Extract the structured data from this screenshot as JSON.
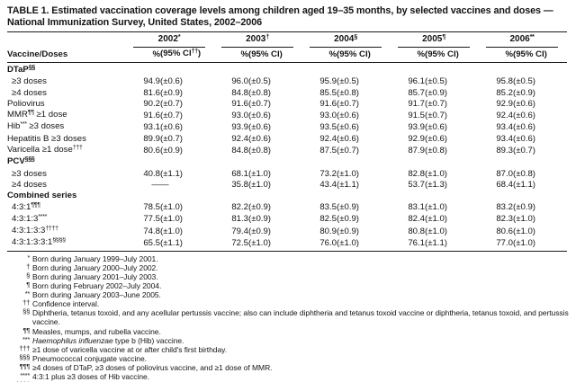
{
  "table": {
    "title": "TABLE 1. Estimated vaccination coverage levels among children aged 19–35 months, by selected vaccines and doses — National Immunization Survey, United States, 2002–2006",
    "row_header": "Vaccine/Doses",
    "years": [
      {
        "label": "2002",
        "marker": "*",
        "pct_label": "%",
        "ci_pre": "(95% CI",
        "ci_sup": "††",
        "ci_post": ")"
      },
      {
        "label": "2003",
        "marker": "†",
        "pct_label": "%",
        "ci_pre": "(95% CI)",
        "ci_sup": "",
        "ci_post": ""
      },
      {
        "label": "2004",
        "marker": "§",
        "pct_label": "%",
        "ci_pre": "(95% CI)",
        "ci_sup": "",
        "ci_post": ""
      },
      {
        "label": "2005",
        "marker": "¶",
        "pct_label": "%",
        "ci_pre": "(95% CI)",
        "ci_sup": "",
        "ci_post": ""
      },
      {
        "label": "2006",
        "marker": "**",
        "pct_label": "%",
        "ci_pre": "(95% CI)",
        "ci_sup": "",
        "ci_post": ""
      }
    ],
    "rows": [
      {
        "type": "section",
        "indent": false,
        "pre": "DTaP",
        "sup": "§§",
        "post": "",
        "values": null
      },
      {
        "type": "data",
        "indent": true,
        "pre": "≥3 doses",
        "sup": "",
        "post": "",
        "values": [
          "94.9",
          "(±0.6)",
          "96.0",
          "(±0.5)",
          "95.9",
          "(±0.5)",
          "96.1",
          "(±0.5)",
          "95.8",
          "(±0.5)"
        ]
      },
      {
        "type": "data",
        "indent": true,
        "pre": "≥4 doses",
        "sup": "",
        "post": "",
        "values": [
          "81.6",
          "(±0.9)",
          "84.8",
          "(±0.8)",
          "85.5",
          "(±0.8)",
          "85.7",
          "(±0.9)",
          "85.2",
          "(±0.9)"
        ]
      },
      {
        "type": "data",
        "indent": false,
        "pre": "Poliovirus",
        "sup": "",
        "post": "",
        "values": [
          "90.2",
          "(±0.7)",
          "91.6",
          "(±0.7)",
          "91.6",
          "(±0.7)",
          "91.7",
          "(±0.7)",
          "92.9",
          "(±0.6)"
        ]
      },
      {
        "type": "data",
        "indent": false,
        "pre": "MMR",
        "sup": "¶¶",
        "post": " ≥1 dose",
        "values": [
          "91.6",
          "(±0.7)",
          "93.0",
          "(±0.6)",
          "93.0",
          "(±0.6)",
          "91.5",
          "(±0.7)",
          "92.4",
          "(±0.6)"
        ]
      },
      {
        "type": "data",
        "indent": false,
        "pre": "Hib",
        "sup": "***",
        "post": " ≥3 doses",
        "values": [
          "93.1",
          "(±0.6)",
          "93.9",
          "(±0.6)",
          "93.5",
          "(±0.6)",
          "93.9",
          "(±0.6)",
          "93.4",
          "(±0.6)"
        ]
      },
      {
        "type": "data",
        "indent": false,
        "pre": "Hepatitis B ≥3 doses",
        "sup": "",
        "post": "",
        "values": [
          "89.9",
          "(±0.7)",
          "92.4",
          "(±0.6)",
          "92.4",
          "(±0.6)",
          "92.9",
          "(±0.6)",
          "93.4",
          "(±0.6)"
        ]
      },
      {
        "type": "data",
        "indent": false,
        "pre": "Varicella ≥1 dose",
        "sup": "†††",
        "post": "",
        "values": [
          "80.6",
          "(±0.9)",
          "84.8",
          "(±0.8)",
          "87.5",
          "(±0.7)",
          "87.9",
          "(±0.8)",
          "89.3",
          "(±0.7)"
        ]
      },
      {
        "type": "section",
        "indent": false,
        "pre": "PCV",
        "sup": "§§§",
        "post": "",
        "values": null
      },
      {
        "type": "data",
        "indent": true,
        "pre": "≥3 doses",
        "sup": "",
        "post": "",
        "values": [
          "40.8",
          "(±1.1)",
          "68.1",
          "(±1.0)",
          "73.2",
          "(±1.0)",
          "82.8",
          "(±1.0)",
          "87.0",
          "(±0.8)"
        ]
      },
      {
        "type": "data",
        "indent": true,
        "pre": "≥4 doses",
        "sup": "",
        "post": "",
        "values": [
          "—",
          "—",
          "35.8",
          "(±1.0)",
          "43.4",
          "(±1.1)",
          "53.7",
          "(±1.3)",
          "68.4",
          "(±1.1)"
        ]
      },
      {
        "type": "section",
        "indent": false,
        "pre": "Combined series",
        "sup": "",
        "post": "",
        "values": null
      },
      {
        "type": "data",
        "indent": true,
        "pre": "4:3:1",
        "sup": "¶¶¶",
        "post": "",
        "values": [
          "78.5",
          "(±1.0)",
          "82.2",
          "(±0.9)",
          "83.5",
          "(±0.9)",
          "83.1",
          "(±1.0)",
          "83.2",
          "(±0.9)"
        ]
      },
      {
        "type": "data",
        "indent": true,
        "pre": "4:3:1:3",
        "sup": "****",
        "post": "",
        "values": [
          "77.5",
          "(±1.0)",
          "81.3",
          "(±0.9)",
          "82.5",
          "(±0.9)",
          "82.4",
          "(±1.0)",
          "82.3",
          "(±1.0)"
        ]
      },
      {
        "type": "data",
        "indent": true,
        "pre": "4:3:1:3:3",
        "sup": "††††",
        "post": "",
        "values": [
          "74.8",
          "(±1.0)",
          "79.4",
          "(±0.9)",
          "80.9",
          "(±0.9)",
          "80.8",
          "(±1.0)",
          "80.6",
          "(±1.0)"
        ]
      },
      {
        "type": "data",
        "indent": true,
        "pre": "4:3:1:3:3:1",
        "sup": "§§§§",
        "post": "",
        "values": [
          "65.5",
          "(±1.1)",
          "72.5",
          "(±1.0)",
          "76.0",
          "(±1.0)",
          "76.1",
          "(±1.1)",
          "77.0",
          "(±1.0)"
        ]
      }
    ],
    "footnotes": [
      {
        "marker": "*",
        "italic": "",
        "text": "Born during January 1999–July 2001."
      },
      {
        "marker": "†",
        "italic": "",
        "text": "Born during January 2000–July 2002."
      },
      {
        "marker": "§",
        "italic": "",
        "text": "Born during January 2001–July 2003."
      },
      {
        "marker": "¶",
        "italic": "",
        "text": "Born during February 2002–July 2004."
      },
      {
        "marker": "**",
        "italic": "",
        "text": "Born during January 2003–June 2005."
      },
      {
        "marker": "††",
        "italic": "",
        "text": "Confidence interval."
      },
      {
        "marker": "§§",
        "italic": "",
        "text": "Diphtheria, tetanus toxoid, and any acellular pertussis vaccine; also can include diphtheria and tetanus toxoid vaccine or diphtheria, tetanus toxoid, and pertussis vaccine."
      },
      {
        "marker": "¶¶",
        "italic": "",
        "text": "Measles, mumps, and rubella vaccine."
      },
      {
        "marker": "***",
        "italic": "Haemophilus influenzae",
        "text": " type b (Hib) vaccine."
      },
      {
        "marker": "†††",
        "italic": "",
        "text": "≥1 dose of varicella vaccine at or after child's first birthday."
      },
      {
        "marker": "§§§",
        "italic": "",
        "text": "Pneumococcal conjugate vaccine."
      },
      {
        "marker": "¶¶¶",
        "italic": "",
        "text": "≥4 doses of DTaP, ≥3 doses of poliovirus vaccine, and ≥1 dose of MMR."
      },
      {
        "marker": "****",
        "italic": "",
        "text": "4:3:1 plus ≥3 doses of Hib vaccine."
      },
      {
        "marker": "††††",
        "italic": "",
        "text": "4:3:1:3 plus ≥3 doses of hepatitis B vaccine."
      },
      {
        "marker": "§§§§",
        "italic": "",
        "text": "4:3:1:3:3 plus ≥1 dose of varicella vaccine."
      }
    ]
  }
}
